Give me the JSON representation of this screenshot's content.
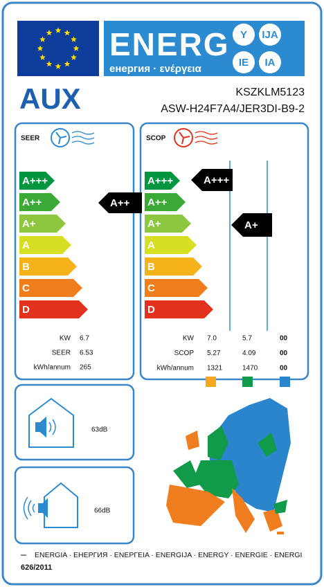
{
  "header": {
    "title": "ENERG",
    "subtitle": "енергия · ενέργεια",
    "badges": [
      "Y",
      "IJA",
      "IE",
      "IA"
    ]
  },
  "supplier": "AUX",
  "model": [
    "KSZKLM5123",
    "ASW-H24F7A4/JER3DI-B9-2"
  ],
  "cooling": {
    "label": "SEER",
    "classes": [
      "A+++",
      "A++",
      "A+",
      "A",
      "B",
      "C",
      "D"
    ],
    "rating": "A++",
    "rows": [
      [
        "KW",
        "6.7"
      ],
      [
        "SEER",
        "6.53"
      ],
      [
        "kWh/annum",
        "265"
      ]
    ]
  },
  "heating": {
    "label": "SCOP",
    "classes": [
      "A+++",
      "A++",
      "A+",
      "A",
      "B",
      "C",
      "D"
    ],
    "ratings": [
      "A+++",
      "A+"
    ],
    "rows": [
      [
        "KW",
        "7.0",
        "5.7",
        "00"
      ],
      [
        "SCOP",
        "5.27",
        "4.09",
        "00"
      ],
      [
        "kWh/annum",
        "1321",
        "1470",
        "00"
      ]
    ]
  },
  "noise": {
    "indoor": "63dB",
    "outdoor": "66dB"
  },
  "footer": {
    "languages": "ENERGIA · ЕНЕРГИЯ · ΕΝΕΡΓΕΙΑ · ENERGIJA · ENERGY · ENERGIE · ENERGI",
    "regulation": "626/2011"
  }
}
